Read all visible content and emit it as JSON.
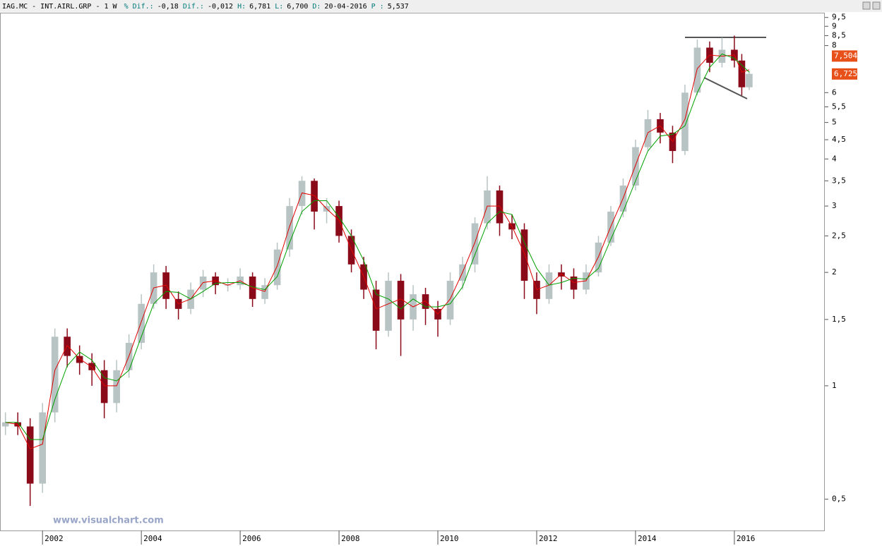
{
  "header": {
    "title": "IAG.MC - INT.AIRL.GRP -  1 W",
    "fields": [
      {
        "label": "% Dif.:",
        "value": "-0,18"
      },
      {
        "label": "Dif.:",
        "value": "-0,012"
      },
      {
        "label": "H:",
        "value": "6,781"
      },
      {
        "label": "L:",
        "value": "6,700"
      },
      {
        "label": "D:",
        "value": "20-04-2016"
      },
      {
        "label": "P :",
        "value": "5,537"
      }
    ]
  },
  "watermark": "www.visualchart.com",
  "chart_data": {
    "type": "candlestick",
    "log_y": true,
    "grid": false,
    "xlim": [
      2001.14,
      2017.83
    ],
    "xticks": [
      2002,
      2004,
      2006,
      2008,
      2010,
      2012,
      2014,
      2016
    ],
    "ylim": [
      0.413,
      9.78
    ],
    "yticks": [
      {
        "value": 0.5,
        "label": "0,5"
      },
      1,
      {
        "value": 1.5,
        "label": "1,5"
      },
      2,
      {
        "value": 2.5,
        "label": "2,5"
      },
      3,
      {
        "value": 3.5,
        "label": "3,5"
      },
      4,
      {
        "value": 4.5,
        "label": "4,5"
      },
      5,
      {
        "value": 5.5,
        "label": "5,5"
      },
      6,
      8,
      {
        "value": 8.5,
        "label": "8,5"
      },
      9,
      {
        "value": 9.5,
        "label": "9,5"
      }
    ],
    "up_color": "#b8c4c4",
    "down_color": "#8b0a1a",
    "x": [
      2001.25,
      2001.5,
      2001.75,
      2002.0,
      2002.25,
      2002.5,
      2002.75,
      2003.0,
      2003.25,
      2003.5,
      2003.75,
      2004.0,
      2004.25,
      2004.5,
      2004.75,
      2005.0,
      2005.25,
      2005.5,
      2005.75,
      2006.0,
      2006.25,
      2006.5,
      2006.75,
      2007.0,
      2007.25,
      2007.5,
      2007.75,
      2008.0,
      2008.25,
      2008.5,
      2008.75,
      2009.0,
      2009.25,
      2009.5,
      2009.75,
      2010.0,
      2010.25,
      2010.5,
      2010.75,
      2011.0,
      2011.25,
      2011.5,
      2011.75,
      2012.0,
      2012.25,
      2012.5,
      2012.75,
      2013.0,
      2013.25,
      2013.5,
      2013.75,
      2014.0,
      2014.25,
      2014.5,
      2014.75,
      2015.0,
      2015.25,
      2015.5,
      2015.75,
      2016.0,
      2016.15,
      2016.3
    ],
    "open": [
      0.78,
      0.8,
      0.78,
      0.55,
      0.85,
      1.35,
      1.2,
      1.15,
      1.1,
      0.9,
      1.1,
      1.3,
      1.65,
      2.0,
      1.7,
      1.6,
      1.8,
      1.95,
      1.85,
      1.85,
      1.95,
      1.7,
      1.85,
      2.3,
      3.0,
      3.5,
      2.9,
      3.0,
      2.5,
      2.1,
      1.8,
      1.4,
      1.9,
      1.5,
      1.75,
      1.6,
      1.5,
      1.9,
      2.1,
      2.7,
      3.3,
      2.7,
      2.6,
      1.9,
      1.7,
      2.0,
      1.95,
      1.8,
      2.0,
      2.4,
      2.9,
      3.4,
      4.3,
      5.1,
      4.7,
      4.2,
      6.0,
      7.9,
      7.2,
      7.8,
      7.3,
      6.2
    ],
    "high": [
      0.85,
      0.85,
      0.82,
      0.9,
      1.42,
      1.42,
      1.28,
      1.22,
      1.17,
      1.17,
      1.37,
      1.75,
      2.1,
      2.08,
      1.78,
      1.88,
      2.03,
      2.0,
      1.93,
      2.05,
      2.0,
      1.93,
      2.4,
      3.15,
      3.6,
      3.55,
      3.15,
      3.1,
      2.6,
      2.2,
      1.9,
      2.0,
      1.98,
      1.85,
      1.82,
      1.68,
      2.0,
      2.2,
      2.8,
      3.6,
      3.4,
      2.85,
      2.7,
      2.0,
      2.1,
      2.1,
      2.05,
      2.1,
      2.5,
      3.0,
      3.55,
      4.5,
      5.4,
      5.3,
      4.9,
      6.3,
      8.3,
      8.2,
      8.4,
      8.5,
      7.6,
      6.85
    ],
    "low": [
      0.74,
      0.74,
      0.48,
      0.52,
      0.8,
      1.12,
      1.07,
      1.0,
      0.82,
      0.85,
      1.05,
      1.25,
      1.6,
      1.6,
      1.5,
      1.55,
      1.72,
      1.75,
      1.78,
      1.8,
      1.62,
      1.65,
      1.8,
      2.2,
      2.85,
      2.6,
      2.7,
      2.4,
      2.0,
      1.7,
      1.25,
      1.35,
      1.2,
      1.4,
      1.45,
      1.35,
      1.45,
      1.8,
      2.0,
      2.6,
      2.5,
      2.45,
      1.7,
      1.55,
      1.65,
      1.8,
      1.7,
      1.75,
      1.95,
      2.35,
      2.8,
      3.3,
      4.2,
      4.4,
      3.9,
      4.1,
      5.9,
      6.8,
      7.0,
      7.0,
      5.9,
      6.1
    ],
    "close": [
      0.8,
      0.78,
      0.55,
      0.85,
      1.35,
      1.2,
      1.15,
      1.1,
      0.9,
      1.1,
      1.3,
      1.65,
      2.0,
      1.7,
      1.6,
      1.8,
      1.95,
      1.85,
      1.85,
      1.95,
      1.7,
      1.85,
      2.3,
      3.0,
      3.5,
      2.9,
      3.0,
      2.5,
      2.1,
      1.8,
      1.4,
      1.9,
      1.5,
      1.75,
      1.6,
      1.5,
      1.9,
      2.1,
      2.7,
      3.3,
      2.7,
      2.6,
      1.9,
      1.7,
      2.0,
      1.95,
      1.8,
      2.0,
      2.4,
      2.9,
      3.4,
      4.3,
      5.1,
      4.7,
      4.2,
      6.0,
      7.9,
      7.2,
      7.8,
      7.3,
      6.2,
      6.73
    ],
    "lines": [
      {
        "color": "#e00000",
        "values": [
          0.8,
          0.79,
          0.68,
          0.7,
          1.1,
          1.28,
          1.18,
          1.12,
          1.0,
          1.0,
          1.2,
          1.48,
          1.82,
          1.85,
          1.65,
          1.7,
          1.88,
          1.9,
          1.85,
          1.9,
          1.82,
          1.78,
          2.08,
          2.65,
          3.25,
          3.2,
          2.95,
          2.75,
          2.3,
          1.95,
          1.6,
          1.65,
          1.7,
          1.62,
          1.68,
          1.55,
          1.7,
          2.0,
          2.4,
          3.0,
          3.0,
          2.65,
          2.25,
          1.8,
          1.85,
          1.98,
          1.88,
          1.9,
          2.2,
          2.65,
          3.15,
          3.85,
          4.7,
          4.9,
          4.45,
          5.1,
          6.95,
          7.55,
          7.5,
          7.55,
          6.8,
          6.9
        ]
      },
      {
        "color": "#00a000",
        "values": [
          0.8,
          0.8,
          0.72,
          0.72,
          0.92,
          1.13,
          1.23,
          1.17,
          1.05,
          1.03,
          1.1,
          1.35,
          1.65,
          1.78,
          1.77,
          1.7,
          1.78,
          1.87,
          1.88,
          1.88,
          1.83,
          1.8,
          1.95,
          2.4,
          2.9,
          3.1,
          3.1,
          2.8,
          2.5,
          2.15,
          1.75,
          1.7,
          1.6,
          1.7,
          1.62,
          1.62,
          1.65,
          1.83,
          2.23,
          2.7,
          2.9,
          2.85,
          2.4,
          2.05,
          1.85,
          1.88,
          1.93,
          1.92,
          2.05,
          2.45,
          2.9,
          3.5,
          4.2,
          4.6,
          4.65,
          4.9,
          6.0,
          7.0,
          7.6,
          7.4,
          7.1,
          6.8
        ]
      }
    ],
    "price_tags": [
      {
        "value": 7.504,
        "label": "7,504",
        "color": "#e8501a"
      },
      {
        "value": 6.725,
        "label": "6,725",
        "color": "#e8501a"
      }
    ]
  }
}
